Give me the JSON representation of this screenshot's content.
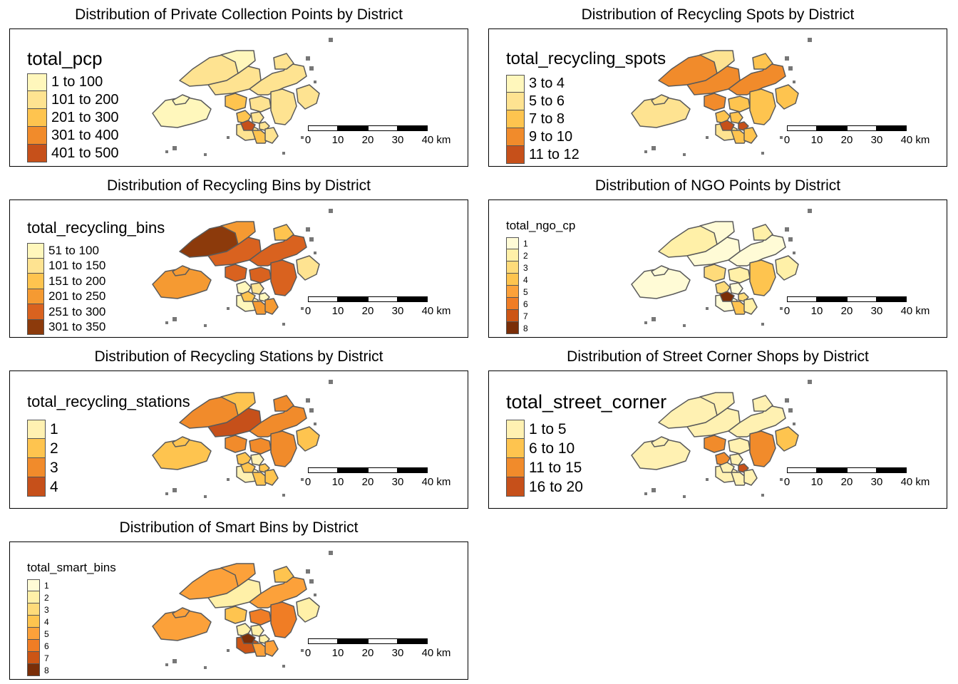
{
  "panels": [
    {
      "id": "pcp",
      "title": "Distribution of Private Collection Points by District",
      "legend_title": "total_pcp",
      "legend_labels": [
        "1 to 100",
        "101 to 200",
        "201 to 300",
        "301 to 400",
        "401 to 500"
      ],
      "legend_colors": [
        "#fff7bc",
        "#fee391",
        "#fec44f",
        "#f18b2b",
        "#c6501a"
      ],
      "district_classes": [
        0,
        0,
        1,
        1,
        0,
        1,
        1,
        2,
        1,
        1,
        2,
        1,
        1,
        1,
        1,
        4,
        2,
        1
      ]
    },
    {
      "id": "spots",
      "title": "Distribution of Recycling Spots by District",
      "legend_title": "total_recycling_spots",
      "legend_labels": [
        "3 to 4",
        "5 to 6",
        "7 to 8",
        "9 to 10",
        "11 to 12"
      ],
      "legend_colors": [
        "#fff7bc",
        "#fee391",
        "#fec44f",
        "#f18b2b",
        "#c6501a"
      ],
      "district_classes": [
        1,
        1,
        3,
        3,
        1,
        3,
        2,
        3,
        2,
        2,
        2,
        2,
        4,
        2,
        1,
        4,
        2,
        2
      ]
    },
    {
      "id": "bins",
      "title": "Distribution of Recycling Bins by District",
      "legend_title": "total_recycling_bins",
      "legend_labels": [
        "51 to 100",
        "101 to 150",
        "151 to 200",
        "201 to 250",
        "251 to 300",
        "301 to 350"
      ],
      "legend_colors": [
        "#fff7bc",
        "#fee391",
        "#fec44f",
        "#f59a32",
        "#d9621f",
        "#8c3a0b"
      ],
      "district_classes": [
        3,
        3,
        5,
        4,
        3,
        4,
        2,
        4,
        4,
        4,
        0,
        1,
        0,
        1,
        0,
        2,
        3,
        3
      ]
    },
    {
      "id": "ngo",
      "title": "Distribution of NGO Points by District",
      "legend_title": "total_ngo_cp",
      "legend_labels": [
        "1",
        "2",
        "3",
        "4",
        "5",
        "6",
        "7",
        "8"
      ],
      "legend_colors": [
        "#fffbd6",
        "#fff0a8",
        "#fedb7a",
        "#fec44f",
        "#fca13a",
        "#f07d25",
        "#cc5515",
        "#7a2e08"
      ],
      "district_classes": [
        0,
        0,
        1,
        0,
        0,
        0,
        1,
        2,
        1,
        3,
        2,
        0,
        2,
        1,
        0,
        7,
        3,
        1
      ]
    },
    {
      "id": "stations",
      "title": "Distribution of Recycling Stations by District",
      "legend_title": "total_recycling_stations",
      "legend_labels": [
        "1",
        "2",
        "3",
        "4"
      ],
      "legend_colors": [
        "#fff1b2",
        "#fec44f",
        "#f18b2b",
        "#c6501a"
      ],
      "district_classes": [
        1,
        1,
        2,
        3,
        1,
        2,
        2,
        2,
        2,
        2,
        1,
        0,
        1,
        1,
        0,
        1,
        1,
        1
      ]
    },
    {
      "id": "corner",
      "title": "Distribution of Street Corner Shops by District",
      "legend_title": "total_street_corner",
      "legend_labels": [
        "1 to 5",
        "6 to 10",
        "11 to 15",
        "16 to 20"
      ],
      "legend_colors": [
        "#fff1b2",
        "#fec44f",
        "#f18b2b",
        "#c6501a"
      ],
      "district_classes": [
        0,
        0,
        0,
        0,
        0,
        0,
        0,
        2,
        0,
        2,
        2,
        0,
        3,
        1,
        0,
        0,
        0,
        0
      ]
    },
    {
      "id": "smart",
      "title": "Distribution of Smart Bins by District",
      "legend_title": "total_smart_bins",
      "legend_labels": [
        "1",
        "2",
        "3",
        "4",
        "5",
        "6",
        "7",
        "8"
      ],
      "legend_colors": [
        "#fffbd6",
        "#fff0a8",
        "#fedb7a",
        "#fec44f",
        "#fca13a",
        "#f07d25",
        "#cc5515",
        "#7a2e08"
      ],
      "district_classes": [
        4,
        4,
        4,
        1,
        4,
        4,
        3,
        3,
        5,
        5,
        1,
        1,
        1,
        1,
        6,
        7,
        4,
        4
      ]
    }
  ],
  "scalebar": {
    "ticks": [
      "0",
      "10",
      "20",
      "30",
      "40 km"
    ]
  },
  "colors": {
    "district_border": "#5a5a5a",
    "frame": "#000000"
  }
}
